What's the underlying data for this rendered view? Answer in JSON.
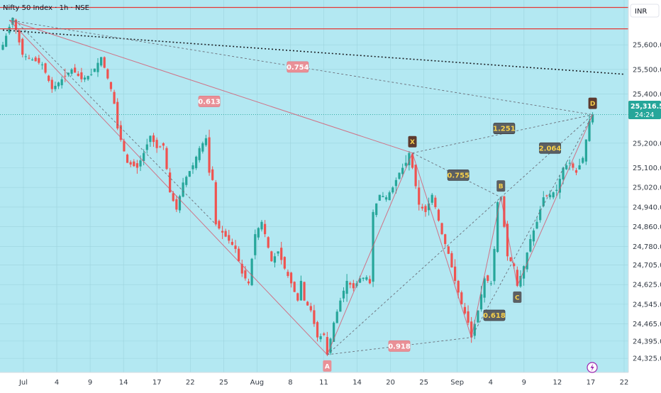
{
  "header": {
    "title": "Nifty 50 Index · 1h · NSE",
    "currency": "INR"
  },
  "price_tag": {
    "price": "25,316.55",
    "countdown": "24:24"
  },
  "colors": {
    "background_band": "#b3e8f2",
    "up": "#26a69a",
    "down": "#ef5350",
    "resistance": "#e53935",
    "trend": "#1b1f24",
    "xabcd_fill": "#5d3b30",
    "ratio_fill": "#e99097",
    "price_tag_bg": "#26a69a"
  },
  "chart_data": {
    "type": "candlestick",
    "symbol": "Nifty 50 Index",
    "timeframe": "1h",
    "exchange": "NSE",
    "x_tick_labels": [
      "Jul",
      "4",
      "9",
      "14",
      "17",
      "22",
      "25",
      "Aug",
      "8",
      "11",
      "14",
      "20",
      "25",
      "Sep",
      "4",
      "9",
      "12",
      "17",
      "22"
    ],
    "y_tick_labels": [
      "25,600.00",
      "25,500.00",
      "25,400.00",
      "25,200.00",
      "25,100.00",
      "25,020.00",
      "24,940.00",
      "24,860.00",
      "24,780.00",
      "24,705.00",
      "24,625.00",
      "24,545.00",
      "24,465.00",
      "24,395.00",
      "24,325.00"
    ],
    "y_ticks": [
      25600,
      25500,
      25400,
      25200,
      25100,
      25020,
      24940,
      24860,
      24780,
      24705,
      24625,
      24545,
      24465,
      24395,
      24325
    ],
    "ylim": [
      24285,
      25765
    ],
    "last_price": 25316.55,
    "resistance_levels": [
      25752,
      25665
    ],
    "trendline": {
      "from": [
        0,
        25660
      ],
      "to": [
        190,
        25480
      ]
    },
    "close_path": [
      [
        0,
        25600
      ],
      [
        3,
        25710
      ],
      [
        6,
        25560
      ],
      [
        9,
        25540
      ],
      [
        12,
        25520
      ],
      [
        15,
        25420
      ],
      [
        18,
        25460
      ],
      [
        21,
        25500
      ],
      [
        24,
        25460
      ],
      [
        27,
        25480
      ],
      [
        30,
        25550
      ],
      [
        33,
        25420
      ],
      [
        34,
        25360
      ],
      [
        35,
        25260
      ],
      [
        38,
        25120
      ],
      [
        41,
        25100
      ],
      [
        43,
        25160
      ],
      [
        45,
        25230
      ],
      [
        47,
        25180
      ],
      [
        49,
        25190
      ],
      [
        51,
        25000
      ],
      [
        53,
        24930
      ],
      [
        55,
        25040
      ],
      [
        58,
        25110
      ],
      [
        60,
        25180
      ],
      [
        62,
        25220
      ],
      [
        63,
        25080
      ],
      [
        64,
        25050
      ],
      [
        65,
        24870
      ],
      [
        68,
        24820
      ],
      [
        71,
        24770
      ],
      [
        73,
        24670
      ],
      [
        75,
        24630
      ],
      [
        77,
        24830
      ],
      [
        79,
        24880
      ],
      [
        80,
        24830
      ],
      [
        82,
        24720
      ],
      [
        84,
        24760
      ],
      [
        86,
        24690
      ],
      [
        88,
        24630
      ],
      [
        90,
        24560
      ],
      [
        91,
        24640
      ],
      [
        92,
        24560
      ],
      [
        94,
        24520
      ],
      [
        96,
        24410
      ],
      [
        98,
        24420
      ],
      [
        99,
        24340
      ],
      [
        101,
        24470
      ],
      [
        103,
        24560
      ],
      [
        105,
        24640
      ],
      [
        107,
        24610
      ],
      [
        109,
        24650
      ],
      [
        111,
        24655
      ],
      [
        112,
        24630
      ],
      [
        113,
        24920
      ],
      [
        115,
        24990
      ],
      [
        117,
        24980
      ],
      [
        119,
        25020
      ],
      [
        121,
        25080
      ],
      [
        123,
        25120
      ],
      [
        124,
        25160
      ],
      [
        125,
        25100
      ],
      [
        127,
        24950
      ],
      [
        129,
        24920
      ],
      [
        131,
        24990
      ],
      [
        132,
        24940
      ],
      [
        134,
        24830
      ],
      [
        136,
        24750
      ],
      [
        138,
        24640
      ],
      [
        140,
        24545
      ],
      [
        142,
        24470
      ],
      [
        143,
        24410
      ],
      [
        145,
        24520
      ],
      [
        147,
        24650
      ],
      [
        149,
        24630
      ],
      [
        150,
        24770
      ],
      [
        151,
        24960
      ],
      [
        152,
        24980
      ],
      [
        154,
        24740
      ],
      [
        156,
        24700
      ],
      [
        157,
        24620
      ],
      [
        159,
        24700
      ],
      [
        161,
        24810
      ],
      [
        163,
        24880
      ],
      [
        165,
        24980
      ],
      [
        167,
        24990
      ],
      [
        169,
        25010
      ],
      [
        171,
        25100
      ],
      [
        173,
        25120
      ],
      [
        175,
        25080
      ],
      [
        177,
        25140
      ],
      [
        179,
        25290
      ],
      [
        180,
        25316
      ]
    ],
    "xabcd_points": [
      {
        "label": "X",
        "index": 125,
        "price": 25160
      },
      {
        "label": "A",
        "index": 99,
        "price": 24340
      },
      {
        "label": "B",
        "index": 152,
        "price": 24980
      },
      {
        "label": "C",
        "index": 157,
        "price": 24620
      },
      {
        "label": "D",
        "index": 180,
        "price": 25316
      }
    ],
    "legs": [
      {
        "from": [
          2,
          25700
        ],
        "to": [
          125,
          25160
        ]
      },
      {
        "from": [
          2,
          25700
        ],
        "to": [
          99,
          24340
        ]
      },
      {
        "from": [
          99,
          24340
        ],
        "to": [
          125,
          25160
        ]
      },
      {
        "from": [
          125,
          25160
        ],
        "to": [
          143,
          24410
        ]
      },
      {
        "from": [
          143,
          24410
        ],
        "to": [
          152,
          24980
        ]
      },
      {
        "from": [
          152,
          24980
        ],
        "to": [
          157,
          24620
        ]
      },
      {
        "from": [
          157,
          24620
        ],
        "to": [
          180,
          25316
        ]
      }
    ],
    "guide_lines": [
      {
        "from": [
          2,
          25700
        ],
        "to": [
          180,
          25316
        ]
      },
      {
        "from": [
          125,
          25160
        ],
        "to": [
          180,
          25316
        ]
      },
      {
        "from": [
          125,
          25160
        ],
        "to": [
          152,
          24980
        ]
      },
      {
        "from": [
          99,
          24340
        ],
        "to": [
          152,
          24980
        ]
      },
      {
        "from": [
          152,
          24980
        ],
        "to": [
          180,
          25316
        ]
      },
      {
        "from": [
          99,
          24340
        ],
        "to": [
          143,
          24410
        ]
      },
      {
        "from": [
          143,
          24410
        ],
        "to": [
          180,
          25316
        ]
      },
      {
        "from": [
          3,
          25710
        ],
        "to": [
          65,
          24870
        ]
      }
    ],
    "ratios": [
      {
        "label": "0.754",
        "index": 90,
        "price": 25510,
        "style": "pink"
      },
      {
        "label": "0.613",
        "index": 63,
        "price": 25370,
        "style": "pink"
      },
      {
        "label": "1.251",
        "index": 153,
        "price": 25260,
        "style": "dark"
      },
      {
        "label": "2.064",
        "index": 167,
        "price": 25180,
        "style": "dark"
      },
      {
        "label": "0.755",
        "index": 139,
        "price": 25070,
        "style": "dark"
      },
      {
        "label": "0.618",
        "index": 150,
        "price": 24500,
        "style": "dark"
      },
      {
        "label": "0.918",
        "index": 121,
        "price": 24375,
        "style": "pink"
      }
    ]
  }
}
